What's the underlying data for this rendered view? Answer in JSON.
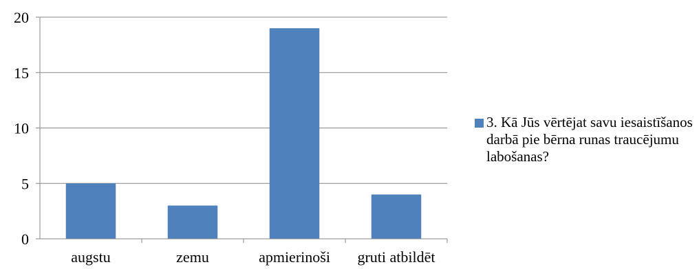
{
  "chart_data": {
    "type": "bar",
    "categories": [
      "augstu",
      "zemu",
      "apmierinoši",
      "gruti atbildēt"
    ],
    "series": [
      {
        "name": "3. Kā Jūs vērtējat savu iesaistīšanos darbā pie bērna runas traucējumu labošanas?",
        "values": [
          5,
          3,
          19,
          4
        ]
      }
    ],
    "ylim": [
      0,
      20
    ],
    "yticks": [
      0,
      5,
      10,
      15,
      20
    ],
    "grid": true,
    "legend_position": "right",
    "bar_color": "#4f81bd",
    "grid_color": "#868686"
  }
}
